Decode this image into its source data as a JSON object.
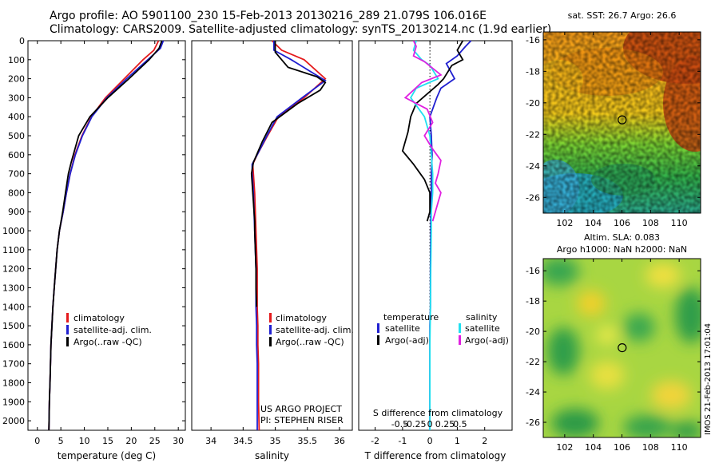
{
  "header": {
    "line1": "Argo profile: AO 5901100_230 15-Feb-2013 20130216_289 21.079S 106.016E",
    "line2": "Climatology: CARS2009. Satellite-adjusted climatology: synTS_20130214.nc (1.9d earlier)"
  },
  "footer": {
    "imos": "IMOS 21-Feb-2013 17:01:04",
    "project1": "US ARGO PROJECT",
    "project2": "PI: STEPHEN RISER"
  },
  "colors": {
    "climatology": "#e41a1c",
    "satellite": "#1f1fd0",
    "argo": "#000000",
    "satellite_s": "#22e0f0",
    "argo_s": "#e020e0"
  },
  "chart_data": [
    {
      "type": "line",
      "id": "temperature",
      "xlabel": "temperature (deg C)",
      "ylabel": "",
      "xlim": [
        -2,
        31.5
      ],
      "ylim": [
        2050,
        0
      ],
      "xticks": [
        0,
        5,
        10,
        15,
        20,
        25,
        30
      ],
      "yticks": [
        0,
        100,
        200,
        300,
        400,
        500,
        600,
        700,
        800,
        900,
        1000,
        1100,
        1200,
        1300,
        1400,
        1500,
        1600,
        1700,
        1800,
        1900,
        2000
      ],
      "legend": [
        "climatology",
        "satellite-adj. clim.",
        "Argo(..raw -QC)"
      ],
      "series": [
        {
          "name": "climatology",
          "color": "#e41a1c",
          "x": [
            25.8,
            24.8,
            22.5,
            18.5,
            14.5,
            11.5,
            9.5,
            8.0,
            7.0,
            6.2,
            5.5,
            4.7,
            4.2,
            3.9,
            3.6,
            3.3,
            3.1,
            2.9,
            2.8,
            2.7,
            2.55,
            2.45
          ],
          "y": [
            0,
            50,
            100,
            200,
            300,
            400,
            500,
            600,
            700,
            800,
            900,
            1000,
            1100,
            1200,
            1300,
            1400,
            1500,
            1600,
            1700,
            1800,
            1900,
            2050
          ]
        },
        {
          "name": "satellite-adj. clim.",
          "color": "#1f1fd0",
          "x": [
            26.8,
            26.2,
            23.5,
            19.0,
            14.8,
            11.6,
            9.6,
            8.1,
            7.0,
            6.2,
            5.5,
            4.7,
            4.2,
            3.9,
            3.6,
            3.3,
            3.1,
            2.9,
            2.8,
            2.7,
            2.55,
            2.45
          ],
          "y": [
            0,
            40,
            100,
            200,
            300,
            400,
            500,
            600,
            700,
            800,
            900,
            1000,
            1100,
            1200,
            1300,
            1400,
            1500,
            1600,
            1700,
            1800,
            1900,
            2050
          ]
        },
        {
          "name": "Argo(..raw -QC)",
          "color": "#000000",
          "x": [
            26.5,
            25.9,
            23.8,
            19.5,
            15.0,
            11.2,
            8.8,
            7.2,
            6.6,
            6.0,
            5.4,
            4.7,
            4.2,
            3.9,
            3.6,
            3.3,
            3.1,
            2.9,
            2.8,
            2.7,
            2.55,
            2.45
          ],
          "y": [
            0,
            40,
            100,
            200,
            300,
            400,
            500,
            640,
            700,
            800,
            900,
            1000,
            1100,
            1200,
            1300,
            1400,
            1500,
            1600,
            1700,
            1800,
            1900,
            2050
          ]
        }
      ]
    },
    {
      "type": "line",
      "id": "salinity",
      "xlabel": "salinity",
      "xlim": [
        33.7,
        36.2
      ],
      "ylim": [
        2050,
        0
      ],
      "xticks": [
        34,
        34.5,
        35,
        35.5,
        36
      ],
      "legend": [
        "climatology",
        "satellite-adj. clim.",
        "Argo(..raw -QC)"
      ],
      "series": [
        {
          "name": "climatology",
          "color": "#e41a1c",
          "x": [
            34.95,
            35.1,
            35.45,
            35.78,
            35.45,
            35.05,
            34.88,
            34.72,
            34.65,
            34.66,
            34.68,
            34.69,
            34.7,
            34.71,
            34.72,
            34.72,
            34.72,
            34.73,
            34.73,
            34.74,
            34.74,
            34.75
          ],
          "y": [
            0,
            50,
            100,
            200,
            300,
            400,
            500,
            600,
            650,
            700,
            800,
            900,
            1000,
            1100,
            1200,
            1300,
            1400,
            1500,
            1600,
            1700,
            1900,
            2050
          ]
        },
        {
          "name": "satellite-adj. clim.",
          "color": "#1f1fd0",
          "x": [
            34.98,
            34.98,
            35.25,
            35.78,
            35.42,
            35.03,
            34.87,
            34.72,
            34.64,
            34.64,
            34.66,
            34.67,
            34.68,
            34.69,
            34.7,
            34.7,
            34.7,
            34.71,
            34.71,
            34.72,
            34.72,
            34.72
          ],
          "y": [
            0,
            50,
            100,
            210,
            300,
            400,
            500,
            600,
            650,
            700,
            800,
            900,
            1000,
            1100,
            1200,
            1300,
            1400,
            1500,
            1600,
            1700,
            1900,
            2050
          ]
        },
        {
          "name": "Argo(..raw -QC)",
          "color": "#000000",
          "x": [
            35.0,
            35.0,
            35.2,
            35.65,
            35.78,
            35.7,
            35.35,
            34.95,
            34.8,
            34.66,
            34.63,
            34.66,
            34.68,
            34.68,
            34.69,
            34.7,
            34.7,
            34.71
          ],
          "y": [
            0,
            60,
            140,
            190,
            220,
            260,
            330,
            430,
            530,
            640,
            700,
            850,
            950,
            1000,
            1100,
            1200,
            1300,
            1400
          ]
        }
      ]
    },
    {
      "type": "line",
      "id": "differences",
      "xlabel": "T difference from climatology",
      "xlabel_top": "S difference from climatology",
      "xlim": [
        -2.6,
        3.0
      ],
      "ylim": [
        2050,
        0
      ],
      "xticks": [
        -2,
        -1,
        0,
        1,
        2
      ],
      "xticks_s": [
        -0.5,
        -0.25,
        0,
        0.25,
        0.5
      ],
      "xticks_s_labels": [
        "-0.5",
        "-0.25",
        "0",
        "0.25",
        "0.5"
      ],
      "legend_temperature": [
        "temperature",
        "satellite",
        "Argo(-adj)"
      ],
      "legend_salinity": [
        "salinity",
        "satellite",
        "Argo(-adj)"
      ],
      "series": [
        {
          "name": "satellite",
          "color": "#1f1fd0",
          "x": [
            1.5,
            1.3,
            1.0,
            0.6,
            0.9,
            0.4,
            0.25,
            0.0,
            0.05,
            0.08,
            0.05,
            0.05,
            0.03,
            0.03,
            0.02,
            0.02,
            0.0,
            0.0,
            0.0,
            0.0,
            0.0
          ],
          "y": [
            0,
            30,
            80,
            120,
            200,
            250,
            300,
            400,
            500,
            600,
            700,
            800,
            900,
            1000,
            1200,
            1400,
            1500,
            1600,
            1800,
            1900,
            2050
          ]
        },
        {
          "name": "Argo(-adj)",
          "color": "#000000",
          "x": [
            1.2,
            1.0,
            1.2,
            0.8,
            0.5,
            0.3,
            -0.1,
            -0.5,
            -0.7,
            -0.8,
            -1.0,
            -0.6,
            -0.2,
            0.0,
            0.0,
            -0.1
          ],
          "y": [
            0,
            50,
            100,
            130,
            200,
            230,
            280,
            330,
            400,
            480,
            580,
            650,
            730,
            800,
            900,
            950
          ]
        },
        {
          "name": "satellite",
          "color": "#22e0f0",
          "x": [
            -0.5,
            -0.6,
            -0.3,
            0.0,
            0.3,
            -0.5,
            -0.7,
            -0.2,
            0.0,
            0.05,
            0.1,
            0.1,
            0.05,
            0.05,
            0.03,
            0.02,
            0.0,
            0.0,
            0.0
          ],
          "y": [
            0,
            50,
            100,
            130,
            200,
            250,
            300,
            400,
            500,
            600,
            700,
            800,
            900,
            1000,
            1200,
            1400,
            1600,
            1800,
            2050
          ]
        },
        {
          "name": "Argo(-adj)",
          "color": "#e020e0",
          "x": [
            -0.6,
            -0.5,
            -0.6,
            -0.2,
            0.4,
            -0.3,
            -0.9,
            -0.1,
            0.1,
            -0.2,
            0.1,
            0.4,
            0.3,
            0.2,
            0.4,
            0.3,
            0.2,
            0.1
          ],
          "y": [
            0,
            30,
            80,
            110,
            180,
            220,
            300,
            360,
            430,
            500,
            570,
            630,
            700,
            750,
            800,
            850,
            900,
            950
          ]
        }
      ]
    },
    {
      "type": "heatmap",
      "id": "sst_map",
      "title": "sat. SST: 26.7 Argo: 26.6",
      "xlim": [
        100.5,
        111.5
      ],
      "ylim": [
        -27,
        -15.5
      ],
      "xticks": [
        102,
        104,
        106,
        108,
        110
      ],
      "yticks": [
        -16,
        -18,
        -20,
        -22,
        -24,
        -26
      ],
      "argo_position": {
        "lon": 106.016,
        "lat": -21.079
      }
    },
    {
      "type": "heatmap",
      "id": "sla_map",
      "title_line1": "Altim. SLA: 0.083",
      "title_line2": "Argo h1000: NaN h2000: NaN",
      "xlim": [
        100.5,
        111.5
      ],
      "ylim": [
        -27,
        -15.2
      ],
      "xticks": [
        102,
        104,
        106,
        108,
        110
      ],
      "yticks": [
        -16,
        -18,
        -20,
        -22,
        -24,
        -26
      ],
      "argo_position": {
        "lon": 106.016,
        "lat": -21.079
      }
    }
  ]
}
